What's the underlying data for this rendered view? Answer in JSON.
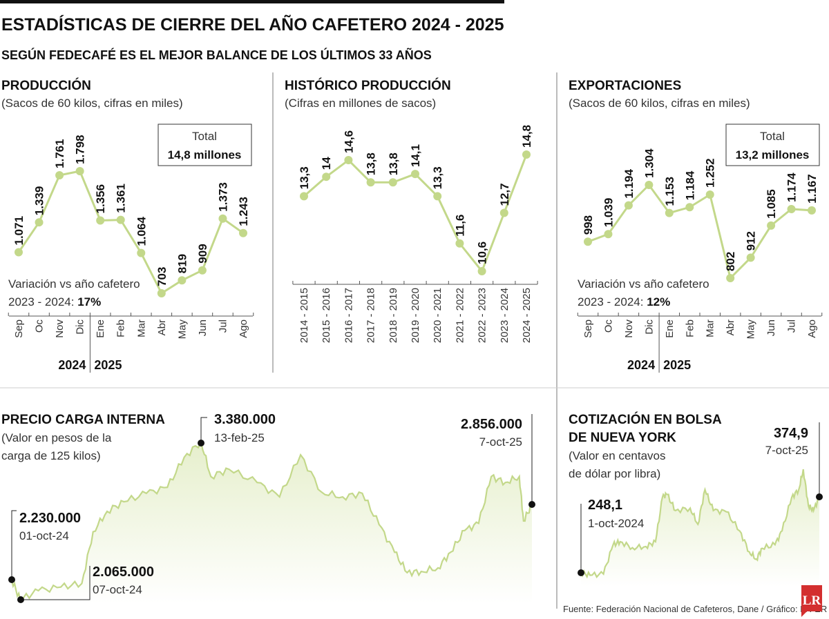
{
  "header": {
    "title": "ESTADÍSTICAS DE CIERRE DEL AÑO CAFETERO 2024 - 2025",
    "subtitle": "SEGÚN FEDECAFÉ ES EL MEJOR BALANCE DE LOS ÚLTIMOS 33 AÑOS"
  },
  "colors": {
    "line": "#c3d88a",
    "fill": "#eef4dc",
    "text": "#111111",
    "logo": "#d32f2f"
  },
  "chart_data": [
    {
      "id": "produccion",
      "type": "line",
      "title": "PRODUCCIÓN",
      "subtitle": "(Sacos de 60 kilos, cifras en miles)",
      "categories": [
        "Sep",
        "Oc",
        "Nov",
        "Dic",
        "Ene",
        "Feb",
        "Mar",
        "Abr",
        "May",
        "Jun",
        "Jul",
        "Ago"
      ],
      "value_labels": [
        "1.071",
        "1.339",
        "1.761",
        "1.798",
        "1.356",
        "1.361",
        "1.064",
        "703",
        "819",
        "909",
        "1.373",
        "1.243"
      ],
      "values": [
        1071,
        1339,
        1761,
        1798,
        1356,
        1361,
        1064,
        703,
        819,
        909,
        1373,
        1243
      ],
      "years": [
        "2024",
        "2025"
      ],
      "total_label": "Total",
      "total_value": "14,8 millones",
      "note_line1": "Variación vs año cafetero",
      "note_line2": "2023 - 2024: ",
      "note_value": "17%"
    },
    {
      "id": "historico",
      "type": "line",
      "title": "HISTÓRICO PRODUCCIÓN",
      "subtitle": "(Cifras en millones de sacos)",
      "categories": [
        "2014 - 2015",
        "2015 - 2016",
        "2016 - 2017",
        "2017 - 2018",
        "2018 - 2019",
        "2019 - 2020",
        "2020 - 2021",
        "2021 - 2022",
        "2022 - 2023",
        "2023 - 2024",
        "2024 - 2025"
      ],
      "value_labels": [
        "13,3",
        "14",
        "14,6",
        "13,8",
        "13,8",
        "14,1",
        "13,3",
        "11,6",
        "10,6",
        "12,7",
        "14,8"
      ],
      "values": [
        13.3,
        14,
        14.6,
        13.8,
        13.8,
        14.1,
        13.3,
        11.6,
        10.6,
        12.7,
        14.8
      ]
    },
    {
      "id": "exportaciones",
      "type": "line",
      "title": "EXPORTACIONES",
      "subtitle": "(Sacos de 60 kilos, cifras en miles)",
      "categories": [
        "Sep",
        "Oc",
        "Nov",
        "Dic",
        "Ene",
        "Feb",
        "Mar",
        "Abr",
        "May",
        "Jun",
        "Jul",
        "Ago"
      ],
      "value_labels": [
        "998",
        "1.039",
        "1.194",
        "1.304",
        "1.153",
        "1.184",
        "1.252",
        "802",
        "912",
        "1.085",
        "1.174",
        "1.167"
      ],
      "values": [
        998,
        1039,
        1194,
        1304,
        1153,
        1184,
        1252,
        802,
        912,
        1085,
        1174,
        1167
      ],
      "years": [
        "2024",
        "2025"
      ],
      "total_label": "Total",
      "total_value": "13,2 millones",
      "note_line1": "Variación vs año cafetero",
      "note_line2": "2023 - 2024: ",
      "note_value": "12%"
    },
    {
      "id": "precio",
      "type": "area",
      "title": "PRECIO CARGA INTERNA",
      "subtitle_lines": [
        "(Valor en pesos de la",
        "carga de 125 kilos)"
      ],
      "annotations": [
        {
          "value": "2.230.000",
          "date": "01-oct-24"
        },
        {
          "value": "2.065.000",
          "date": "07-oct-24"
        },
        {
          "value": "3.380.000",
          "date": "13-feb-25"
        },
        {
          "value": "2.856.000",
          "date": "7-oct-25"
        }
      ],
      "x": [
        "2024-10-01",
        "2024-10-07",
        "2024-10-20",
        "2024-11-05",
        "2024-11-20",
        "2024-11-28",
        "2024-12-08",
        "2024-12-20",
        "2025-01-05",
        "2025-01-20",
        "2025-02-01",
        "2025-02-13",
        "2025-02-20",
        "2025-03-05",
        "2025-03-25",
        "2025-04-10",
        "2025-04-25",
        "2025-05-10",
        "2025-05-25",
        "2025-06-08",
        "2025-06-20",
        "2025-07-01",
        "2025-07-10",
        "2025-07-20",
        "2025-08-01",
        "2025-08-10",
        "2025-08-20",
        "2025-08-30",
        "2025-09-08",
        "2025-09-18",
        "2025-09-28",
        "2025-10-01",
        "2025-10-07"
      ],
      "values": [
        2230000,
        2065000,
        2140000,
        2170000,
        2200000,
        2630000,
        2800000,
        2880000,
        2950000,
        3000000,
        3250000,
        3380000,
        3090000,
        3150000,
        3040000,
        2920000,
        3270000,
        2960000,
        2920000,
        2950000,
        2690000,
        2460000,
        2290000,
        2300000,
        2330000,
        2460000,
        2640000,
        2700000,
        3090000,
        3040000,
        3090000,
        2720000,
        2856000
      ]
    },
    {
      "id": "bolsa",
      "type": "area",
      "title_lines": [
        "COTIZACIÓN EN BOLSA",
        "DE NUEVA YORK"
      ],
      "subtitle_lines": [
        "(Valor en centavos",
        "de dólar por libra)"
      ],
      "annotations": [
        {
          "value": "248,1",
          "date": "1-oct-2024"
        },
        {
          "value": "374,9",
          "date": "7-oct-25"
        }
      ],
      "x": [
        "2024-10-01",
        "2024-10-15",
        "2024-11-05",
        "2024-11-20",
        "2024-12-01",
        "2024-12-20",
        "2025-01-10",
        "2025-01-25",
        "2025-02-05",
        "2025-02-12",
        "2025-02-25",
        "2025-03-20",
        "2025-04-01",
        "2025-04-12",
        "2025-04-25",
        "2025-05-15",
        "2025-06-05",
        "2025-06-20",
        "2025-07-01",
        "2025-07-10",
        "2025-07-30",
        "2025-08-10",
        "2025-08-25",
        "2025-09-05",
        "2025-09-12",
        "2025-09-20",
        "2025-09-28",
        "2025-10-07"
      ],
      "values": [
        248.1,
        244,
        246,
        295,
        300,
        290,
        292,
        300,
        375,
        379,
        352,
        356,
        329,
        387,
        352,
        350,
        318,
        283,
        271,
        289,
        295,
        318,
        374,
        387,
        421,
        360,
        352,
        374.9
      ]
    }
  ],
  "footer": {
    "source": "Fuente: Federación Nacional de Cafeteros, Dane / Gráfico: LR-ER",
    "logo": "LR"
  }
}
